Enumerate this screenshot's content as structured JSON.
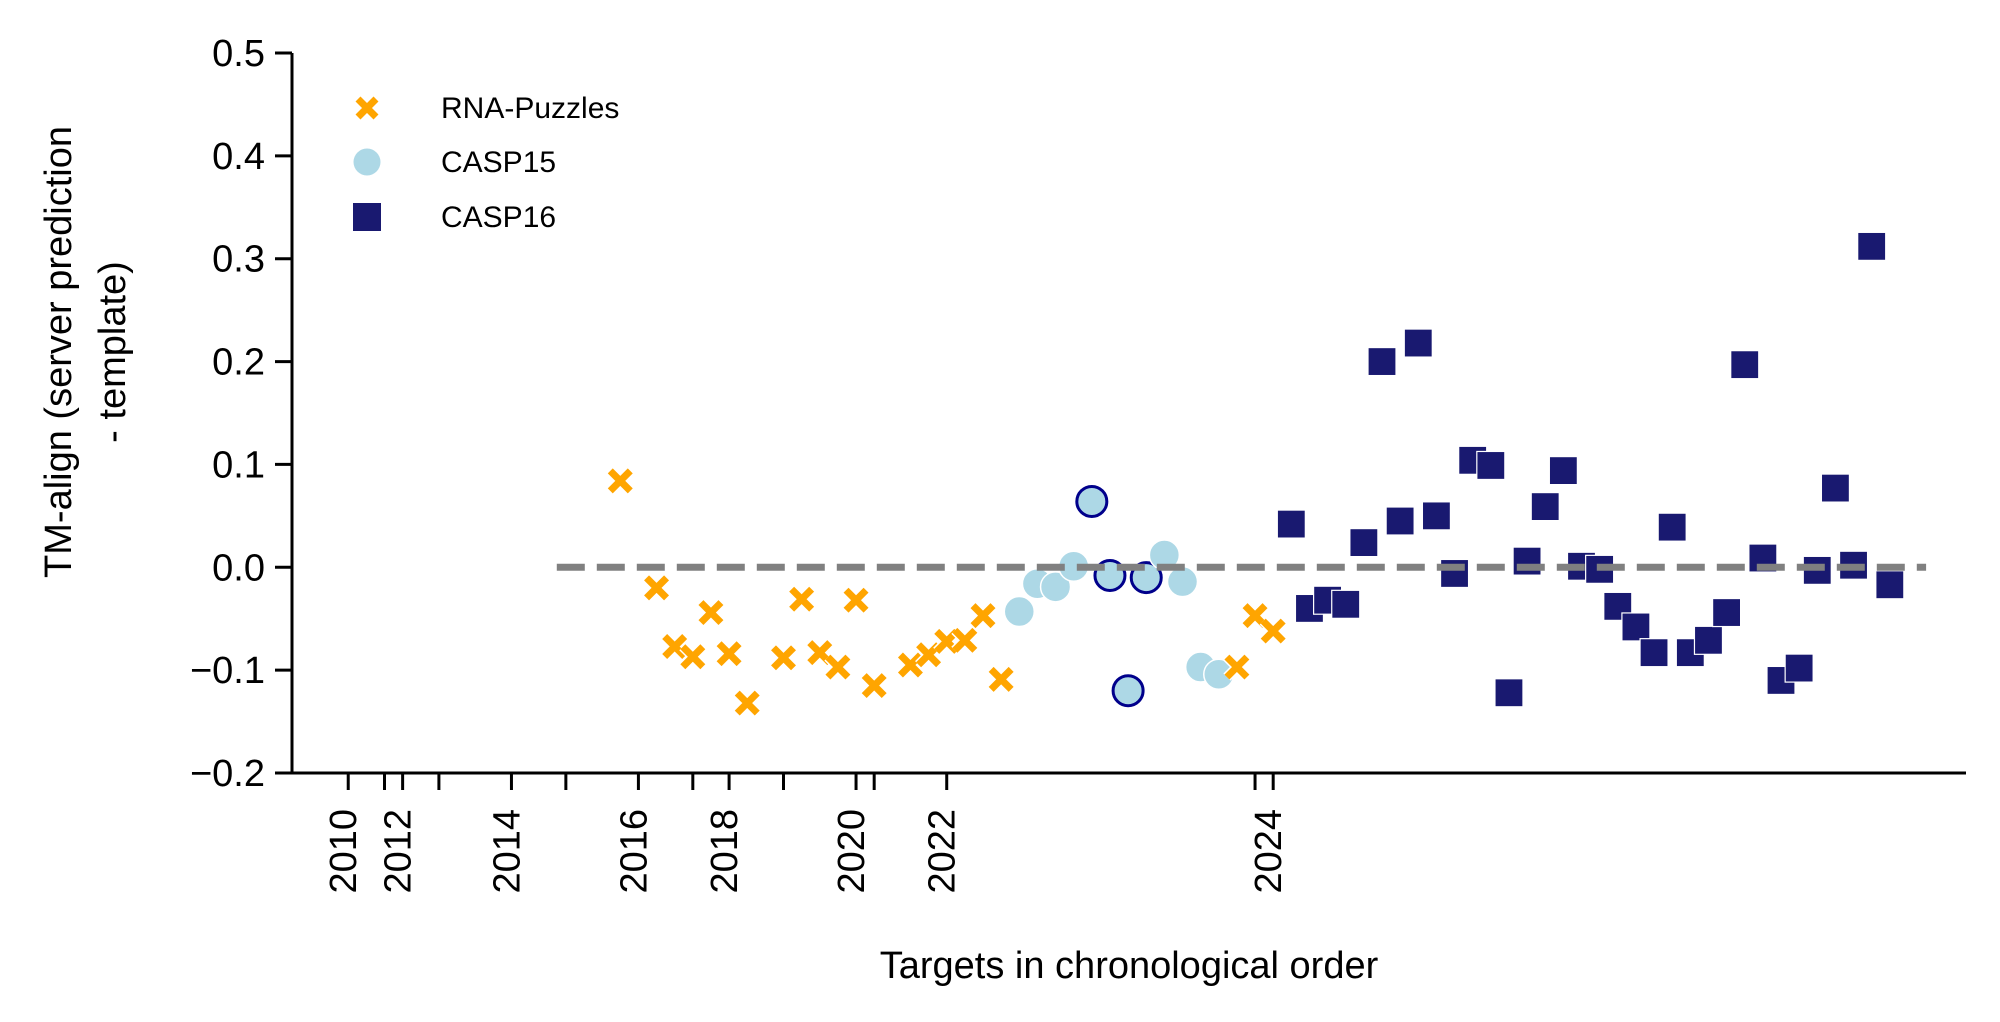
{
  "chart_data": {
    "type": "scatter",
    "title": "",
    "xlabel": "Targets in chronological order",
    "ylabel_lines": [
      "TM-align (server prediction",
      "- template)"
    ],
    "ylim": [
      -0.2,
      0.5
    ],
    "xlim": [
      -18.1,
      74.2
    ],
    "yticks": [
      {
        "value": 0.5,
        "label": "0.5"
      },
      {
        "value": 0.4,
        "label": "0.4"
      },
      {
        "value": 0.3,
        "label": "0.3"
      },
      {
        "value": 0.2,
        "label": "0.2"
      },
      {
        "value": 0.1,
        "label": "0.1"
      },
      {
        "value": 0.0,
        "label": "0.0"
      },
      {
        "value": -0.1,
        "label": "−0.1"
      },
      {
        "value": -0.2,
        "label": "−0.2"
      }
    ],
    "xticks": [
      {
        "value": -15,
        "label": "2010"
      },
      {
        "value": -13,
        "label": ""
      },
      {
        "value": -12,
        "label": "2012"
      },
      {
        "value": -10,
        "label": ""
      },
      {
        "value": -6,
        "label": "2014"
      },
      {
        "value": -3,
        "label": ""
      },
      {
        "value": 1,
        "label": "2016"
      },
      {
        "value": 4,
        "label": ""
      },
      {
        "value": 6,
        "label": "2018"
      },
      {
        "value": 9,
        "label": ""
      },
      {
        "value": 13,
        "label": "2020"
      },
      {
        "value": 14,
        "label": ""
      },
      {
        "value": 18,
        "label": "2022"
      },
      {
        "value": 35,
        "label": ""
      },
      {
        "value": 36,
        "label": "2024"
      }
    ],
    "reference_line": {
      "y": 0.0,
      "x_start": -3.5,
      "x_end": 72.0,
      "style": "dashed",
      "color": "#808080"
    },
    "grid": false,
    "legend": {
      "placement": "top-left"
    },
    "series": [
      {
        "name": "RNA-Puzzles",
        "marker": "x",
        "color": "#ffa500",
        "points": [
          {
            "x": 0,
            "y": 0.084
          },
          {
            "x": 2,
            "y": -0.02
          },
          {
            "x": 3,
            "y": -0.077
          },
          {
            "x": 4,
            "y": -0.087
          },
          {
            "x": 5,
            "y": -0.044
          },
          {
            "x": 6,
            "y": -0.084
          },
          {
            "x": 7,
            "y": -0.132
          },
          {
            "x": 9,
            "y": -0.088
          },
          {
            "x": 10,
            "y": -0.031
          },
          {
            "x": 11,
            "y": -0.083
          },
          {
            "x": 12,
            "y": -0.097
          },
          {
            "x": 13,
            "y": -0.032
          },
          {
            "x": 14,
            "y": -0.115
          },
          {
            "x": 16,
            "y": -0.095
          },
          {
            "x": 17,
            "y": -0.085
          },
          {
            "x": 18,
            "y": -0.072
          },
          {
            "x": 19,
            "y": -0.071
          },
          {
            "x": 20,
            "y": -0.047
          },
          {
            "x": 21,
            "y": -0.109
          },
          {
            "x": 34,
            "y": -0.097
          },
          {
            "x": 35,
            "y": -0.047
          },
          {
            "x": 36,
            "y": -0.062
          }
        ]
      },
      {
        "name": "CASP15",
        "marker": "circle",
        "color": "#add8e6",
        "highlight_edge_color": "#00008b",
        "points": [
          {
            "x": 22,
            "y": -0.043,
            "highlighted": false
          },
          {
            "x": 23,
            "y": -0.016,
            "highlighted": false
          },
          {
            "x": 24,
            "y": -0.019,
            "highlighted": false
          },
          {
            "x": 25,
            "y": 0.001,
            "highlighted": false
          },
          {
            "x": 26,
            "y": 0.064,
            "highlighted": true
          },
          {
            "x": 27,
            "y": -0.008,
            "highlighted": true
          },
          {
            "x": 28,
            "y": -0.12,
            "highlighted": true
          },
          {
            "x": 29,
            "y": -0.01,
            "highlighted": true
          },
          {
            "x": 30,
            "y": 0.012,
            "highlighted": false
          },
          {
            "x": 31,
            "y": -0.014,
            "highlighted": false
          },
          {
            "x": 32,
            "y": -0.097,
            "highlighted": false
          },
          {
            "x": 33,
            "y": -0.104,
            "highlighted": false
          }
        ]
      },
      {
        "name": "CASP16",
        "marker": "square",
        "color": "#191970",
        "points": [
          {
            "x": 37,
            "y": 0.042
          },
          {
            "x": 38,
            "y": -0.04
          },
          {
            "x": 39,
            "y": -0.032
          },
          {
            "x": 40,
            "y": -0.036
          },
          {
            "x": 41,
            "y": 0.024
          },
          {
            "x": 42,
            "y": 0.2
          },
          {
            "x": 43,
            "y": 0.045
          },
          {
            "x": 44,
            "y": 0.218
          },
          {
            "x": 45,
            "y": 0.05
          },
          {
            "x": 46,
            "y": -0.006
          },
          {
            "x": 47,
            "y": 0.104
          },
          {
            "x": 48,
            "y": 0.099
          },
          {
            "x": 49,
            "y": -0.122
          },
          {
            "x": 50,
            "y": 0.006
          },
          {
            "x": 51,
            "y": 0.059
          },
          {
            "x": 52,
            "y": 0.094
          },
          {
            "x": 53,
            "y": 0.001
          },
          {
            "x": 54,
            "y": -0.002
          },
          {
            "x": 55,
            "y": -0.038
          },
          {
            "x": 56,
            "y": -0.058
          },
          {
            "x": 57,
            "y": -0.083
          },
          {
            "x": 58,
            "y": 0.039
          },
          {
            "x": 59,
            "y": -0.083
          },
          {
            "x": 60,
            "y": -0.071
          },
          {
            "x": 61,
            "y": -0.044
          },
          {
            "x": 62,
            "y": 0.197
          },
          {
            "x": 63,
            "y": 0.009
          },
          {
            "x": 64,
            "y": -0.11
          },
          {
            "x": 65,
            "y": -0.098
          },
          {
            "x": 66,
            "y": -0.003
          },
          {
            "x": 67,
            "y": 0.077
          },
          {
            "x": 68,
            "y": 0.002
          },
          {
            "x": 69,
            "y": 0.312
          },
          {
            "x": 70,
            "y": -0.017
          }
        ]
      }
    ]
  }
}
